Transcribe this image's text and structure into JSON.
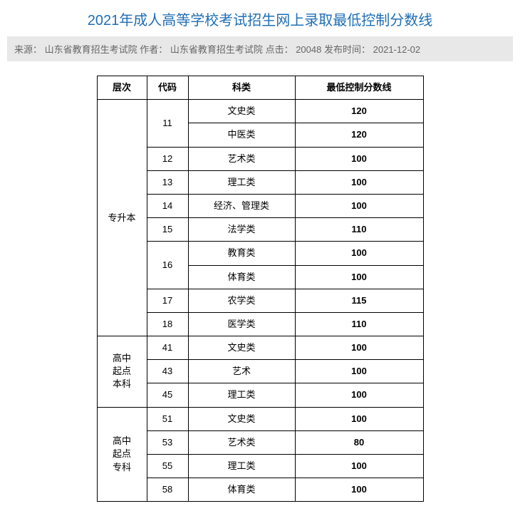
{
  "title": {
    "text": "2021年成人高等学校考试招生网上录取最低控制分数线",
    "color": "#1f6fb5",
    "fontsize": 20
  },
  "meta": {
    "source_label": "来源：",
    "source": "山东省教育招生考试院",
    "author_label": "作者：",
    "author": "山东省教育招生考试院",
    "clicks_label": "点击：",
    "clicks": "20048",
    "pubtime_label": "发布时间：",
    "pubtime": "2021-12-02",
    "bg_color": "#e8e8e8",
    "text_color": "#666666",
    "fontsize": 13
  },
  "table": {
    "border_color": "#000000",
    "cell_fontsize": 13,
    "header_fontsize": 13,
    "columns": {
      "level": "层次",
      "code": "代码",
      "category": "科类",
      "score": "最低控制分数线"
    },
    "rows": [
      {
        "level": "专升本",
        "level_rowspan": 10,
        "code": "11",
        "code_rowspan": 2,
        "category": "文史类",
        "score": "120"
      },
      {
        "category": "中医类",
        "score": "120"
      },
      {
        "code": "12",
        "code_rowspan": 1,
        "category": "艺术类",
        "score": "100"
      },
      {
        "code": "13",
        "code_rowspan": 1,
        "category": "理工类",
        "score": "100"
      },
      {
        "code": "14",
        "code_rowspan": 1,
        "category": "经济、管理类",
        "score": "100"
      },
      {
        "code": "15",
        "code_rowspan": 1,
        "category": "法学类",
        "score": "110"
      },
      {
        "code": "16",
        "code_rowspan": 2,
        "category": "教育类",
        "score": "100"
      },
      {
        "category": "体育类",
        "score": "100"
      },
      {
        "code": "17",
        "code_rowspan": 1,
        "category": "农学类",
        "score": "115"
      },
      {
        "code": "18",
        "code_rowspan": 1,
        "category": "医学类",
        "score": "110"
      },
      {
        "level": "高中起点本科",
        "level_rowspan": 3,
        "code": "41",
        "code_rowspan": 1,
        "category": "文史类",
        "score": "100"
      },
      {
        "code": "43",
        "code_rowspan": 1,
        "category": "艺术",
        "score": "100"
      },
      {
        "code": "45",
        "code_rowspan": 1,
        "category": "理工类",
        "score": "100"
      },
      {
        "level": "高中起点专科",
        "level_rowspan": 4,
        "code": "51",
        "code_rowspan": 1,
        "category": "文史类",
        "score": "100"
      },
      {
        "code": "53",
        "code_rowspan": 1,
        "category": "艺术类",
        "score": "80"
      },
      {
        "code": "55",
        "code_rowspan": 1,
        "category": "理工类",
        "score": "100"
      },
      {
        "code": "58",
        "code_rowspan": 1,
        "category": "体育类",
        "score": "100"
      }
    ]
  }
}
